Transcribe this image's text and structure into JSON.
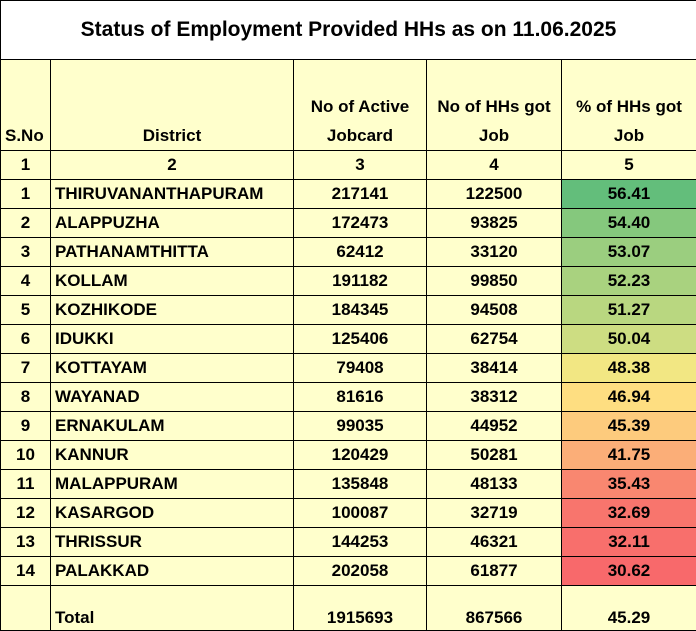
{
  "title": "Status of Employment Provided HHs as on 11.06.2025",
  "headers": {
    "sno": "S.No",
    "district": "District",
    "active_jobcard": "No of Active Jobcard",
    "hhs_got_job": "No of HHs got Job",
    "pct_got_job": "% of HHs got Job"
  },
  "column_numbers": [
    "1",
    "2",
    "3",
    "4",
    "5"
  ],
  "rows": [
    {
      "sno": "1",
      "district": "THIRUVANANTHAPURAM",
      "active": "217141",
      "got_job": "122500",
      "pct": "56.41",
      "color": "#63BE7B"
    },
    {
      "sno": "2",
      "district": "ALAPPUZHA",
      "active": "172473",
      "got_job": "93825",
      "pct": "54.40",
      "color": "#85C87D"
    },
    {
      "sno": "3",
      "district": "PATHANAMTHITTA",
      "active": "62412",
      "got_job": "33120",
      "pct": "53.07",
      "color": "#9BCE7F"
    },
    {
      "sno": "4",
      "district": "KOLLAM",
      "active": "191182",
      "got_job": "99850",
      "pct": "52.23",
      "color": "#A9D27F"
    },
    {
      "sno": "5",
      "district": "KOZHIKODE",
      "active": "184345",
      "got_job": "94508",
      "pct": "51.27",
      "color": "#B9D780"
    },
    {
      "sno": "6",
      "district": "IDUKKI",
      "active": "125406",
      "got_job": "62754",
      "pct": "50.04",
      "color": "#CDDD82"
    },
    {
      "sno": "7",
      "district": "KOTTAYAM",
      "active": "79408",
      "got_job": "38414",
      "pct": "48.38",
      "color": "#F2E783"
    },
    {
      "sno": "8",
      "district": "WAYANAD",
      "active": "81616",
      "got_job": "38312",
      "pct": "46.94",
      "color": "#FEDE81"
    },
    {
      "sno": "9",
      "district": "ERNAKULAM",
      "active": "99035",
      "got_job": "44952",
      "pct": "45.39",
      "color": "#FDCB7D"
    },
    {
      "sno": "10",
      "district": "KANNUR",
      "active": "120429",
      "got_job": "50281",
      "pct": "41.75",
      "color": "#FBAE78"
    },
    {
      "sno": "11",
      "district": "MALAPPURAM",
      "active": "135848",
      "got_job": "48133",
      "pct": "35.43",
      "color": "#F98770"
    },
    {
      "sno": "12",
      "district": "KASARGOD",
      "active": "100087",
      "got_job": "32719",
      "pct": "32.69",
      "color": "#F8756D"
    },
    {
      "sno": "13",
      "district": "THRISSUR",
      "active": "144253",
      "got_job": "46321",
      "pct": "32.11",
      "color": "#F86F6C"
    },
    {
      "sno": "14",
      "district": "PALAKKAD",
      "active": "202058",
      "got_job": "61877",
      "pct": "30.62",
      "color": "#F8696B"
    }
  ],
  "total": {
    "label": "Total",
    "active": "1915693",
    "got_job": "867566",
    "pct": "45.29"
  },
  "colors": {
    "header_bg": "#FFFFCC",
    "border": "#000000"
  }
}
